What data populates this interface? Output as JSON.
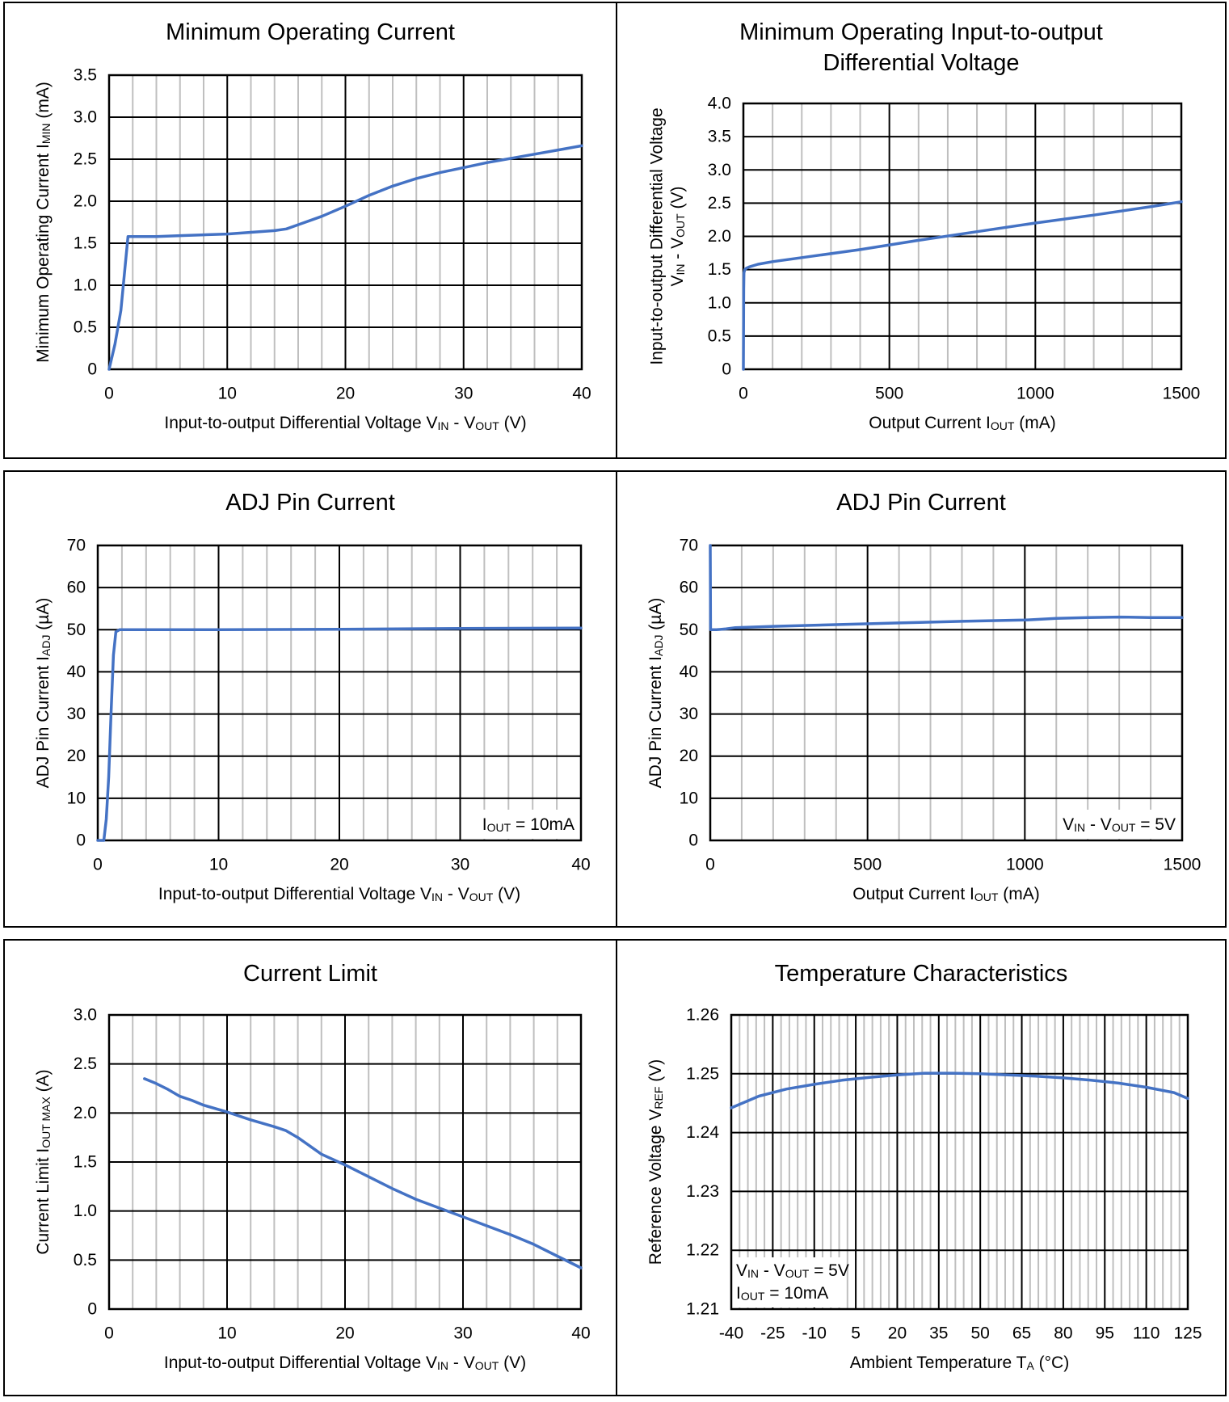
{
  "chart_data": [
    {
      "type": "line",
      "title": "Minimum Operating Current",
      "xlabel": {
        "main": "Input-to-output Differential Voltage V",
        "sub": "IN",
        "rest": " - V",
        "sub2": "OUT",
        "tail": " (V)"
      },
      "ylabel": {
        "main": "Minimum Operating Current I",
        "sub": "MIN",
        "rest": " (mA)"
      },
      "xlim": [
        0,
        40
      ],
      "ylim": [
        0,
        3.5
      ],
      "xticks": [
        0,
        10,
        20,
        30,
        40
      ],
      "xtick_labels": [
        "0",
        "10",
        "20",
        "30",
        "40"
      ],
      "yticks": [
        0,
        0.5,
        1.0,
        1.5,
        2.0,
        2.5,
        3.0,
        3.5
      ],
      "ytick_labels": [
        "0",
        "0.5",
        "1.0",
        "1.5",
        "2.0",
        "2.5",
        "3.0",
        "3.5"
      ],
      "grid": true,
      "series": [
        {
          "x": [
            0,
            0.5,
            1.0,
            1.2,
            1.6,
            2,
            4,
            6,
            8,
            10,
            12,
            14,
            15,
            16,
            18,
            20,
            22,
            24,
            26,
            28,
            30,
            32,
            34,
            36,
            38,
            40
          ],
          "y": [
            0,
            0.3,
            0.7,
            1.0,
            1.58,
            1.58,
            1.58,
            1.59,
            1.6,
            1.61,
            1.63,
            1.65,
            1.67,
            1.72,
            1.82,
            1.94,
            2.07,
            2.18,
            2.27,
            2.34,
            2.4,
            2.46,
            2.51,
            2.56,
            2.61,
            2.66
          ]
        }
      ],
      "annotation": null
    },
    {
      "type": "line",
      "title": "Minimum Operating Input-to-output Differential Voltage",
      "xlabel": {
        "main": "Output Current I",
        "sub": "OUT",
        "rest": " (mA)"
      },
      "ylabel_line1": "Input-to-output Differential Voltage",
      "ylabel": {
        "main": "V",
        "sub": "IN",
        "rest": " - V",
        "sub2": "OUT",
        "tail": " (V)"
      },
      "xlim": [
        0,
        1500
      ],
      "ylim": [
        0,
        4.0
      ],
      "xticks": [
        0,
        500,
        1000,
        1500
      ],
      "xtick_labels": [
        "0",
        "500",
        "1000",
        "1500"
      ],
      "yticks": [
        0,
        0.5,
        1.0,
        1.5,
        2.0,
        2.5,
        3.0,
        3.5,
        4.0
      ],
      "ytick_labels": [
        "0",
        "0.5",
        "1.0",
        "1.5",
        "2.0",
        "2.5",
        "3.0",
        "3.5",
        "4.0"
      ],
      "grid": true,
      "series": [
        {
          "x": [
            0,
            1,
            2,
            5,
            10,
            20,
            50,
            100,
            200,
            400,
            600,
            800,
            1000,
            1200,
            1400,
            1500
          ],
          "y": [
            0,
            1.2,
            1.45,
            1.5,
            1.52,
            1.54,
            1.58,
            1.62,
            1.68,
            1.8,
            1.94,
            2.07,
            2.2,
            2.32,
            2.45,
            2.52
          ]
        }
      ],
      "annotation": null
    },
    {
      "type": "line",
      "title": "ADJ Pin Current",
      "xlabel": {
        "main": "Input-to-output Differential Voltage V",
        "sub": "IN",
        "rest": " - V",
        "sub2": "OUT",
        "tail": " (V)"
      },
      "ylabel": {
        "main": "ADJ Pin Current I",
        "sub": "ADJ",
        "rest": " (µA)"
      },
      "xlim": [
        0,
        40
      ],
      "ylim": [
        0,
        70
      ],
      "xticks": [
        0,
        10,
        20,
        30,
        40
      ],
      "xtick_labels": [
        "0",
        "10",
        "20",
        "30",
        "40"
      ],
      "yticks": [
        0,
        10,
        20,
        30,
        40,
        50,
        60,
        70
      ],
      "ytick_labels": [
        "0",
        "10",
        "20",
        "30",
        "40",
        "50",
        "60",
        "70"
      ],
      "grid": true,
      "series": [
        {
          "x": [
            0,
            0.5,
            0.7,
            0.9,
            1.1,
            1.3,
            1.5,
            1.8,
            2.5,
            5,
            10,
            20,
            30,
            40
          ],
          "y": [
            0,
            0,
            5,
            15,
            30,
            44,
            49.5,
            50,
            50,
            50,
            50,
            50.1,
            50.3,
            50.4
          ]
        }
      ],
      "annotation": {
        "lines": [
          {
            "main": "I",
            "sub": "OUT",
            "rest": " = 10mA"
          }
        ],
        "position": "bottom-right"
      }
    },
    {
      "type": "line",
      "title": "ADJ Pin Current",
      "xlabel": {
        "main": "Output Current I",
        "sub": "OUT",
        "rest": " (mA)"
      },
      "ylabel": {
        "main": "ADJ Pin Current I",
        "sub": "ADJ",
        "rest": " (µA)"
      },
      "xlim": [
        0,
        1500
      ],
      "ylim": [
        0,
        70
      ],
      "xticks": [
        0,
        500,
        1000,
        1500
      ],
      "xtick_labels": [
        "0",
        "500",
        "1000",
        "1500"
      ],
      "yticks": [
        0,
        10,
        20,
        30,
        40,
        50,
        60,
        70
      ],
      "ytick_labels": [
        "0",
        "10",
        "20",
        "30",
        "40",
        "50",
        "60",
        "70"
      ],
      "grid": true,
      "series": [
        {
          "x": [
            0,
            0.5,
            1,
            5,
            20,
            50,
            80,
            200,
            400,
            600,
            800,
            1000,
            1100,
            1200,
            1300,
            1400,
            1500
          ],
          "y": [
            70,
            60,
            50,
            50,
            50,
            50.2,
            50.5,
            50.8,
            51.2,
            51.6,
            52,
            52.3,
            52.7,
            52.9,
            53,
            52.9,
            52.9
          ]
        }
      ],
      "annotation": {
        "lines": [
          {
            "main": "V",
            "sub": "IN",
            "rest": " - V",
            "sub2": "OUT",
            "tail": " = 5V"
          }
        ],
        "position": "bottom-right"
      }
    },
    {
      "type": "line",
      "title": "Current Limit",
      "xlabel": {
        "main": "Input-to-output Differential Voltage V",
        "sub": "IN",
        "rest": " - V",
        "sub2": "OUT",
        "tail": " (V)"
      },
      "ylabel": {
        "main": "Current Limit I",
        "sub": "OUT MAX",
        "rest": " (A)"
      },
      "xlim": [
        0,
        40
      ],
      "ylim": [
        0,
        3.0
      ],
      "xticks": [
        0,
        10,
        20,
        30,
        40
      ],
      "xtick_labels": [
        "0",
        "10",
        "20",
        "30",
        "40"
      ],
      "yticks": [
        0,
        0.5,
        1.0,
        1.5,
        2.0,
        2.5,
        3.0
      ],
      "ytick_labels": [
        "0",
        "0.5",
        "1.0",
        "1.5",
        "2.0",
        "2.5",
        "3.0"
      ],
      "grid": true,
      "series": [
        {
          "x": [
            3,
            4,
            5,
            6,
            7,
            8,
            10,
            12,
            14,
            15,
            16,
            18,
            20,
            22,
            24,
            26,
            28,
            30,
            32,
            34,
            36,
            38,
            40
          ],
          "y": [
            2.35,
            2.3,
            2.24,
            2.17,
            2.13,
            2.08,
            2.01,
            1.93,
            1.86,
            1.82,
            1.75,
            1.58,
            1.47,
            1.35,
            1.23,
            1.12,
            1.03,
            0.94,
            0.85,
            0.76,
            0.66,
            0.54,
            0.42
          ]
        }
      ],
      "annotation": null
    },
    {
      "type": "line",
      "title": "Temperature Characteristics",
      "xlabel": {
        "main": "Ambient Temperature T",
        "sub": "A",
        "rest": " (°C)"
      },
      "ylabel": {
        "main": "Reference Voltage V",
        "sub": "REF",
        "rest": " (V)"
      },
      "xlim": [
        -40,
        125
      ],
      "ylim": [
        1.21,
        1.26
      ],
      "xticks": [
        -40,
        -25,
        -10,
        5,
        20,
        35,
        50,
        65,
        80,
        95,
        110,
        125
      ],
      "xtick_labels": [
        "-40",
        "-25",
        "-10",
        "5",
        "20",
        "35",
        "50",
        "65",
        "80",
        "95",
        "110",
        "125"
      ],
      "yticks": [
        1.21,
        1.22,
        1.23,
        1.24,
        1.25,
        1.26
      ],
      "ytick_labels": [
        "1.21",
        "1.22",
        "1.23",
        "1.24",
        "1.25",
        "1.26"
      ],
      "grid": true,
      "series": [
        {
          "x": [
            -40,
            -30,
            -20,
            -10,
            0,
            10,
            20,
            30,
            40,
            50,
            60,
            70,
            80,
            90,
            100,
            110,
            120,
            125
          ],
          "y": [
            1.2442,
            1.2462,
            1.2474,
            1.2482,
            1.2489,
            1.2494,
            1.2498,
            1.2501,
            1.2501,
            1.25,
            1.2498,
            1.2496,
            1.2493,
            1.2489,
            1.2484,
            1.2477,
            1.2468,
            1.2458
          ]
        }
      ],
      "annotation": {
        "lines": [
          {
            "main": "V",
            "sub": "IN",
            "rest": " - V",
            "sub2": "OUT",
            "tail": " = 5V"
          },
          {
            "main": "I",
            "sub": "OUT",
            "rest": " = 10mA"
          }
        ],
        "position": "bottom-left"
      }
    }
  ],
  "colors": {
    "series": "#4472C4",
    "frame": "#000000",
    "minor_grid": "#BFBFBF",
    "major_grid": "#000000"
  }
}
